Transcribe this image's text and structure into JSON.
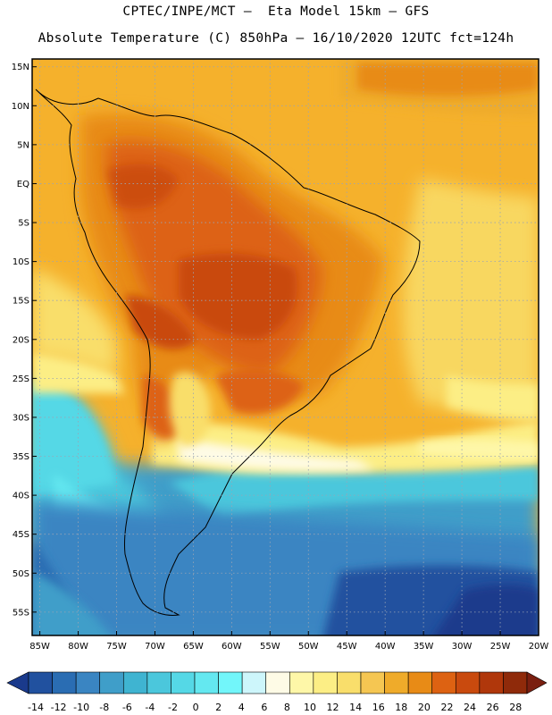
{
  "header": {
    "line1": "CPTEC/INPE/MCT –  Eta Model 15km – GFS",
    "line2": "Absolute Temperature (C) 850hPa – 16/10/2020 12UTC fct=124h"
  },
  "axes": {
    "lat_labels": [
      "15N",
      "10N",
      "5N",
      "EQ",
      "5S",
      "10S",
      "15S",
      "20S",
      "25S",
      "30S",
      "35S",
      "40S",
      "45S",
      "50S",
      "55S"
    ],
    "lat_values": [
      15,
      10,
      5,
      0,
      -5,
      -10,
      -15,
      -20,
      -25,
      -30,
      -35,
      -40,
      -45,
      -50,
      -55
    ],
    "lon_labels": [
      "85W",
      "80W",
      "75W",
      "70W",
      "65W",
      "60W",
      "55W",
      "50W",
      "45W",
      "40W",
      "35W",
      "30W",
      "25W",
      "20W"
    ],
    "lon_values": [
      -85,
      -80,
      -75,
      -70,
      -65,
      -60,
      -55,
      -50,
      -45,
      -40,
      -35,
      -30,
      -25,
      -20
    ],
    "lat_range": [
      -58,
      16
    ],
    "lon_range": [
      -86,
      -20
    ],
    "gridlines": "dotted"
  },
  "colorbar": {
    "levels": [
      "-14",
      "-12",
      "-10",
      "-8",
      "-6",
      "-4",
      "-2",
      "0",
      "2",
      "4",
      "6",
      "8",
      "10",
      "12",
      "14",
      "16",
      "18",
      "20",
      "22",
      "24",
      "26",
      "28"
    ],
    "colors": [
      "#1a3a8c",
      "#21519f",
      "#2a6db3",
      "#3a85c2",
      "#3f9ec9",
      "#3fb4d1",
      "#4bc7dc",
      "#55d8e6",
      "#64e8f0",
      "#72f6fa",
      "#cdf6fb",
      "#fefbe6",
      "#fef7a8",
      "#fcee85",
      "#f9de6b",
      "#f5c652",
      "#efab2a",
      "#e88b16",
      "#dd6212",
      "#c94a0e",
      "#b0370b",
      "#8f2a0a",
      "#7a1f10"
    ]
  }
}
